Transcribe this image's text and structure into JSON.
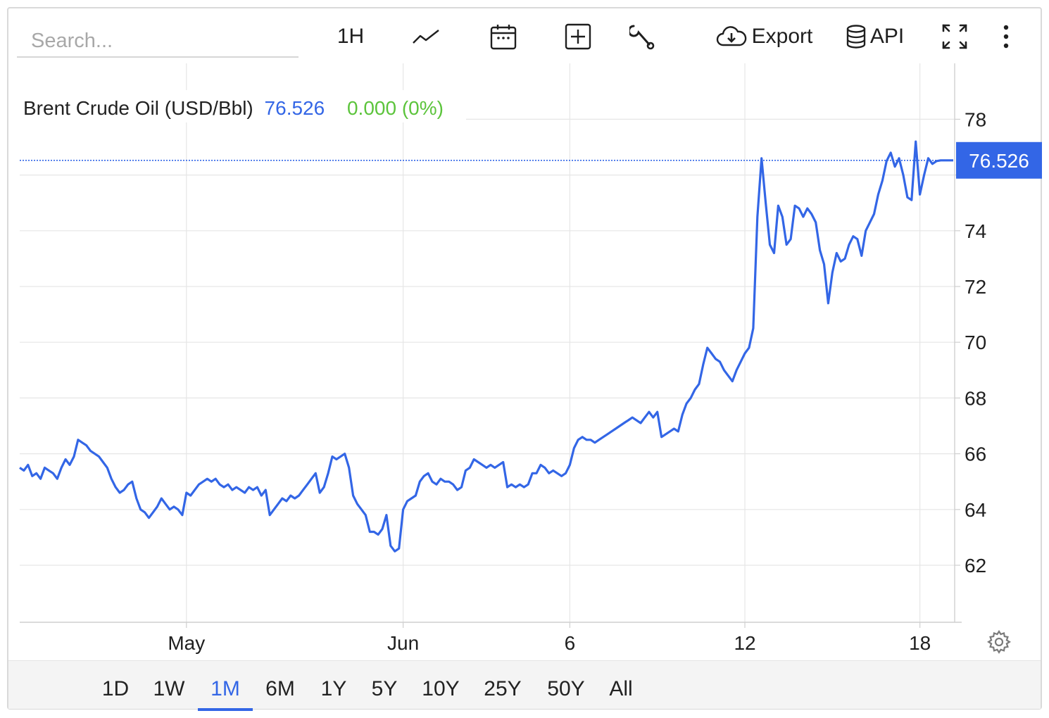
{
  "search": {
    "placeholder": "Search..."
  },
  "toolbar": {
    "interval_label": "1H",
    "export_label": "Export",
    "api_label": "API",
    "icons": [
      "line-chart-icon",
      "calendar-icon",
      "add-indicator-icon",
      "wrench-icon",
      "cloud-download-icon",
      "database-icon",
      "fullscreen-icon",
      "more-vertical-icon"
    ]
  },
  "legend": {
    "name": "Brent Crude Oil (USD/Bbl)",
    "price": "76.526",
    "change": "0.000 (0%)"
  },
  "colors": {
    "line": "#3366e6",
    "change_positive": "#5cc43c",
    "grid": "#e6e6e6",
    "axis_text": "#1f1f1f"
  },
  "ranges": [
    "1D",
    "1W",
    "1M",
    "6M",
    "1Y",
    "5Y",
    "10Y",
    "25Y",
    "50Y",
    "All"
  ],
  "active_range": "1M",
  "chart_data": {
    "type": "line",
    "title": "Brent Crude Oil (USD/Bbl)",
    "xlabel": "",
    "ylabel": "",
    "ylim": [
      60,
      80
    ],
    "yticks": [
      62,
      64,
      66,
      68,
      70,
      72,
      74,
      76,
      78
    ],
    "ytick_labels": [
      "62",
      "64",
      "66",
      "68",
      "70",
      "72",
      "74",
      "",
      "78"
    ],
    "xticks": [
      {
        "index": 40,
        "label": "May"
      },
      {
        "index": 92,
        "label": "Jun"
      },
      {
        "index": 132,
        "label": "6"
      },
      {
        "index": 174,
        "label": "12"
      },
      {
        "index": 216,
        "label": "18"
      }
    ],
    "grid": true,
    "last_value": "76.526",
    "series": [
      {
        "x_count": 232,
        "values": [
          65.5,
          65.4,
          65.6,
          65.2,
          65.3,
          65.1,
          65.5,
          65.4,
          65.3,
          65.1,
          65.5,
          65.8,
          65.6,
          65.9,
          66.5,
          66.4,
          66.3,
          66.1,
          66.0,
          65.9,
          65.7,
          65.5,
          65.1,
          64.8,
          64.6,
          64.7,
          64.9,
          65.0,
          64.4,
          64.0,
          63.9,
          63.7,
          63.9,
          64.1,
          64.4,
          64.2,
          64.0,
          64.1,
          64.0,
          63.8,
          64.6,
          64.5,
          64.7,
          64.9,
          65.0,
          65.1,
          65.0,
          65.1,
          64.9,
          64.8,
          64.9,
          64.7,
          64.8,
          64.7,
          64.6,
          64.8,
          64.7,
          64.8,
          64.5,
          64.7,
          63.8,
          64.0,
          64.2,
          64.4,
          64.3,
          64.5,
          64.4,
          64.5,
          64.7,
          64.9,
          65.1,
          65.3,
          64.6,
          64.8,
          65.3,
          65.9,
          65.8,
          65.9,
          66.0,
          65.5,
          64.5,
          64.2,
          64.0,
          63.8,
          63.2,
          63.2,
          63.1,
          63.3,
          63.8,
          62.7,
          62.5,
          62.6,
          64.0,
          64.3,
          64.4,
          64.5,
          65.0,
          65.2,
          65.3,
          65.0,
          64.9,
          65.1,
          65.0,
          65.0,
          64.9,
          64.7,
          64.8,
          65.4,
          65.5,
          65.8,
          65.7,
          65.6,
          65.5,
          65.6,
          65.5,
          65.6,
          65.7,
          64.8,
          64.9,
          64.8,
          64.9,
          64.8,
          64.9,
          65.3,
          65.3,
          65.6,
          65.5,
          65.3,
          65.4,
          65.3,
          65.2,
          65.3,
          65.6,
          66.2,
          66.5,
          66.6,
          66.5,
          66.5,
          66.4,
          66.5,
          66.6,
          66.7,
          66.8,
          66.9,
          67.0,
          67.1,
          67.2,
          67.3,
          67.2,
          67.1,
          67.3,
          67.5,
          67.3,
          67.5,
          66.6,
          66.7,
          66.8,
          66.9,
          66.8,
          67.4,
          67.8,
          68.0,
          68.3,
          68.5,
          69.2,
          69.8,
          69.6,
          69.4,
          69.3,
          69.0,
          68.8,
          68.6,
          69.0,
          69.3,
          69.6,
          69.8,
          70.5,
          74.5,
          76.6,
          75.0,
          73.5,
          73.2,
          74.9,
          74.5,
          73.5,
          73.7,
          74.9,
          74.8,
          74.5,
          74.8,
          74.6,
          74.3,
          73.3,
          72.8,
          71.4,
          72.5,
          73.2,
          72.9,
          73.0,
          73.5,
          73.8,
          73.7,
          73.1,
          74.0,
          74.3,
          74.6,
          75.3,
          75.8,
          76.5,
          76.8,
          76.3,
          76.6,
          76.0,
          75.2,
          75.1,
          77.2,
          75.3,
          76.0,
          76.6,
          76.4,
          76.5,
          76.526,
          76.526,
          76.526,
          76.526
        ]
      }
    ]
  }
}
